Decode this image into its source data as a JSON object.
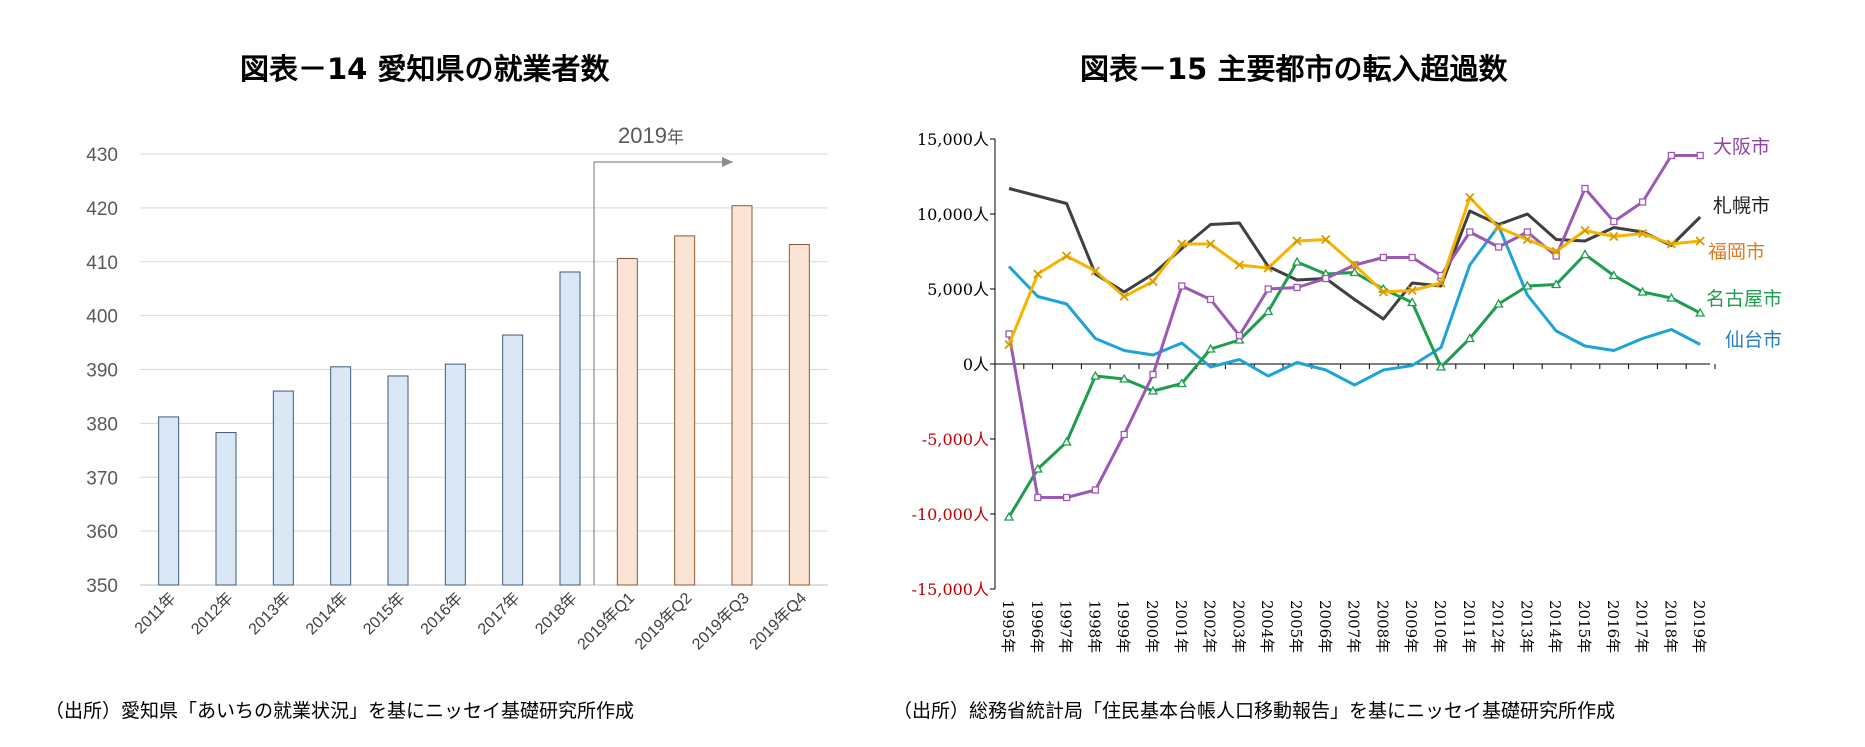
{
  "left_chart": {
    "title": "図表－14 愛知県の就業者数",
    "source": "（出所）愛知県「あいちの就業状況」を基にニッセイ基礎研究所作成",
    "bracket_label": "2019",
    "bracket_label_suffix": "年",
    "chart_data": {
      "type": "bar",
      "title": "図表－14 愛知県の就業者数",
      "categories": [
        "2011年",
        "2012年",
        "2013年",
        "2014年",
        "2015年",
        "2016年",
        "2017年",
        "2018年",
        "2019年Q1",
        "2019年Q2",
        "2019年Q3",
        "2019年Q4"
      ],
      "values": [
        381.2,
        378.3,
        386.0,
        390.5,
        388.8,
        391.0,
        396.4,
        408.1,
        410.6,
        414.8,
        420.4,
        413.2
      ],
      "highlight_from_index": 8,
      "ylim": [
        350,
        430
      ],
      "yticks": [
        "350",
        "360",
        "370",
        "380",
        "390",
        "400",
        "410",
        "420",
        "430"
      ],
      "colors": {
        "normal_fill": "#dae7f4",
        "normal_stroke": "#3f5b7c",
        "highlight_fill": "#fbe4d3",
        "highlight_stroke": "#8a5a3a"
      },
      "grid": true
    }
  },
  "right_chart": {
    "title": "図表－15 主要都市の転入超過数",
    "source": "（出所）総務省統計局「住民基本台帳人口移動報告」を基にニッセイ基礎研究所作成",
    "chart_data": {
      "type": "line",
      "title": "図表－15 主要都市の転入超過数",
      "x": [
        "1995年",
        "1996年",
        "1997年",
        "1998年",
        "1999年",
        "2000年",
        "2001年",
        "2002年",
        "2003年",
        "2004年",
        "2005年",
        "2006年",
        "2007年",
        "2008年",
        "2009年",
        "2010年",
        "2011年",
        "2012年",
        "2013年",
        "2014年",
        "2015年",
        "2016年",
        "2017年",
        "2018年",
        "2019年"
      ],
      "ylim": [
        -15000,
        15000
      ],
      "yticks": [
        {
          "value": 15000,
          "label": "15,000人"
        },
        {
          "value": 10000,
          "label": "10,000人"
        },
        {
          "value": 5000,
          "label": "5,000人"
        },
        {
          "value": 0,
          "label": "0人"
        },
        {
          "value": -5000,
          "label": "-5,000人"
        },
        {
          "value": -10000,
          "label": "-10,000人"
        },
        {
          "value": -15000,
          "label": "-15,000人"
        }
      ],
      "legend_placement": "right, beside line ends",
      "series": [
        {
          "name": "札幌市",
          "color": "#404040",
          "marker": "none",
          "values": [
            11700,
            11200,
            10700,
            6000,
            4800,
            6000,
            7700,
            9300,
            9400,
            6500,
            5600,
            5700,
            4300,
            3000,
            5400,
            5200,
            10200,
            9300,
            10000,
            8300,
            8200,
            9100,
            8800,
            7900,
            9800
          ]
        },
        {
          "name": "仙台市",
          "color": "#1ea3d9",
          "marker": "none",
          "values": [
            6500,
            4500,
            4000,
            1700,
            900,
            600,
            1400,
            -200,
            300,
            -800,
            100,
            -400,
            -1400,
            -400,
            -100,
            1100,
            6600,
            9200,
            4600,
            2200,
            1200,
            900,
            1700,
            2300,
            1300
          ]
        },
        {
          "name": "名古屋市",
          "color": "#1f9d4e",
          "marker": "triangle",
          "values": [
            -10200,
            -7000,
            -5200,
            -800,
            -1000,
            -1800,
            -1300,
            1000,
            1600,
            3500,
            6800,
            6000,
            6100,
            5000,
            4100,
            -200,
            1700,
            4000,
            5200,
            5300,
            7300,
            5900,
            4800,
            4400,
            3400
          ]
        },
        {
          "name": "大阪市",
          "color": "#9b59b6",
          "marker": "square",
          "values": [
            2000,
            -8900,
            -8900,
            -8400,
            -4700,
            -700,
            5200,
            4300,
            1900,
            5000,
            5100,
            5700,
            6600,
            7100,
            7100,
            5900,
            8800,
            7800,
            8800,
            7200,
            11700,
            9500,
            10800,
            13900,
            13900
          ]
        },
        {
          "name": "福岡市",
          "color": "#f5b400",
          "marker": "x",
          "values": [
            1300,
            6000,
            7200,
            6200,
            4500,
            5500,
            8000,
            8000,
            6600,
            6400,
            8200,
            8300,
            6600,
            4800,
            4900,
            5400,
            11100,
            9100,
            8300,
            7500,
            8900,
            8500,
            8700,
            8000,
            8200
          ]
        }
      ],
      "legend_label_colors": {
        "札幌市": "#222222",
        "仙台市": "#2a7dbf",
        "名古屋市": "#1f9d4e",
        "大阪市": "#8e44ad",
        "福岡市": "#e07b1f"
      }
    }
  }
}
